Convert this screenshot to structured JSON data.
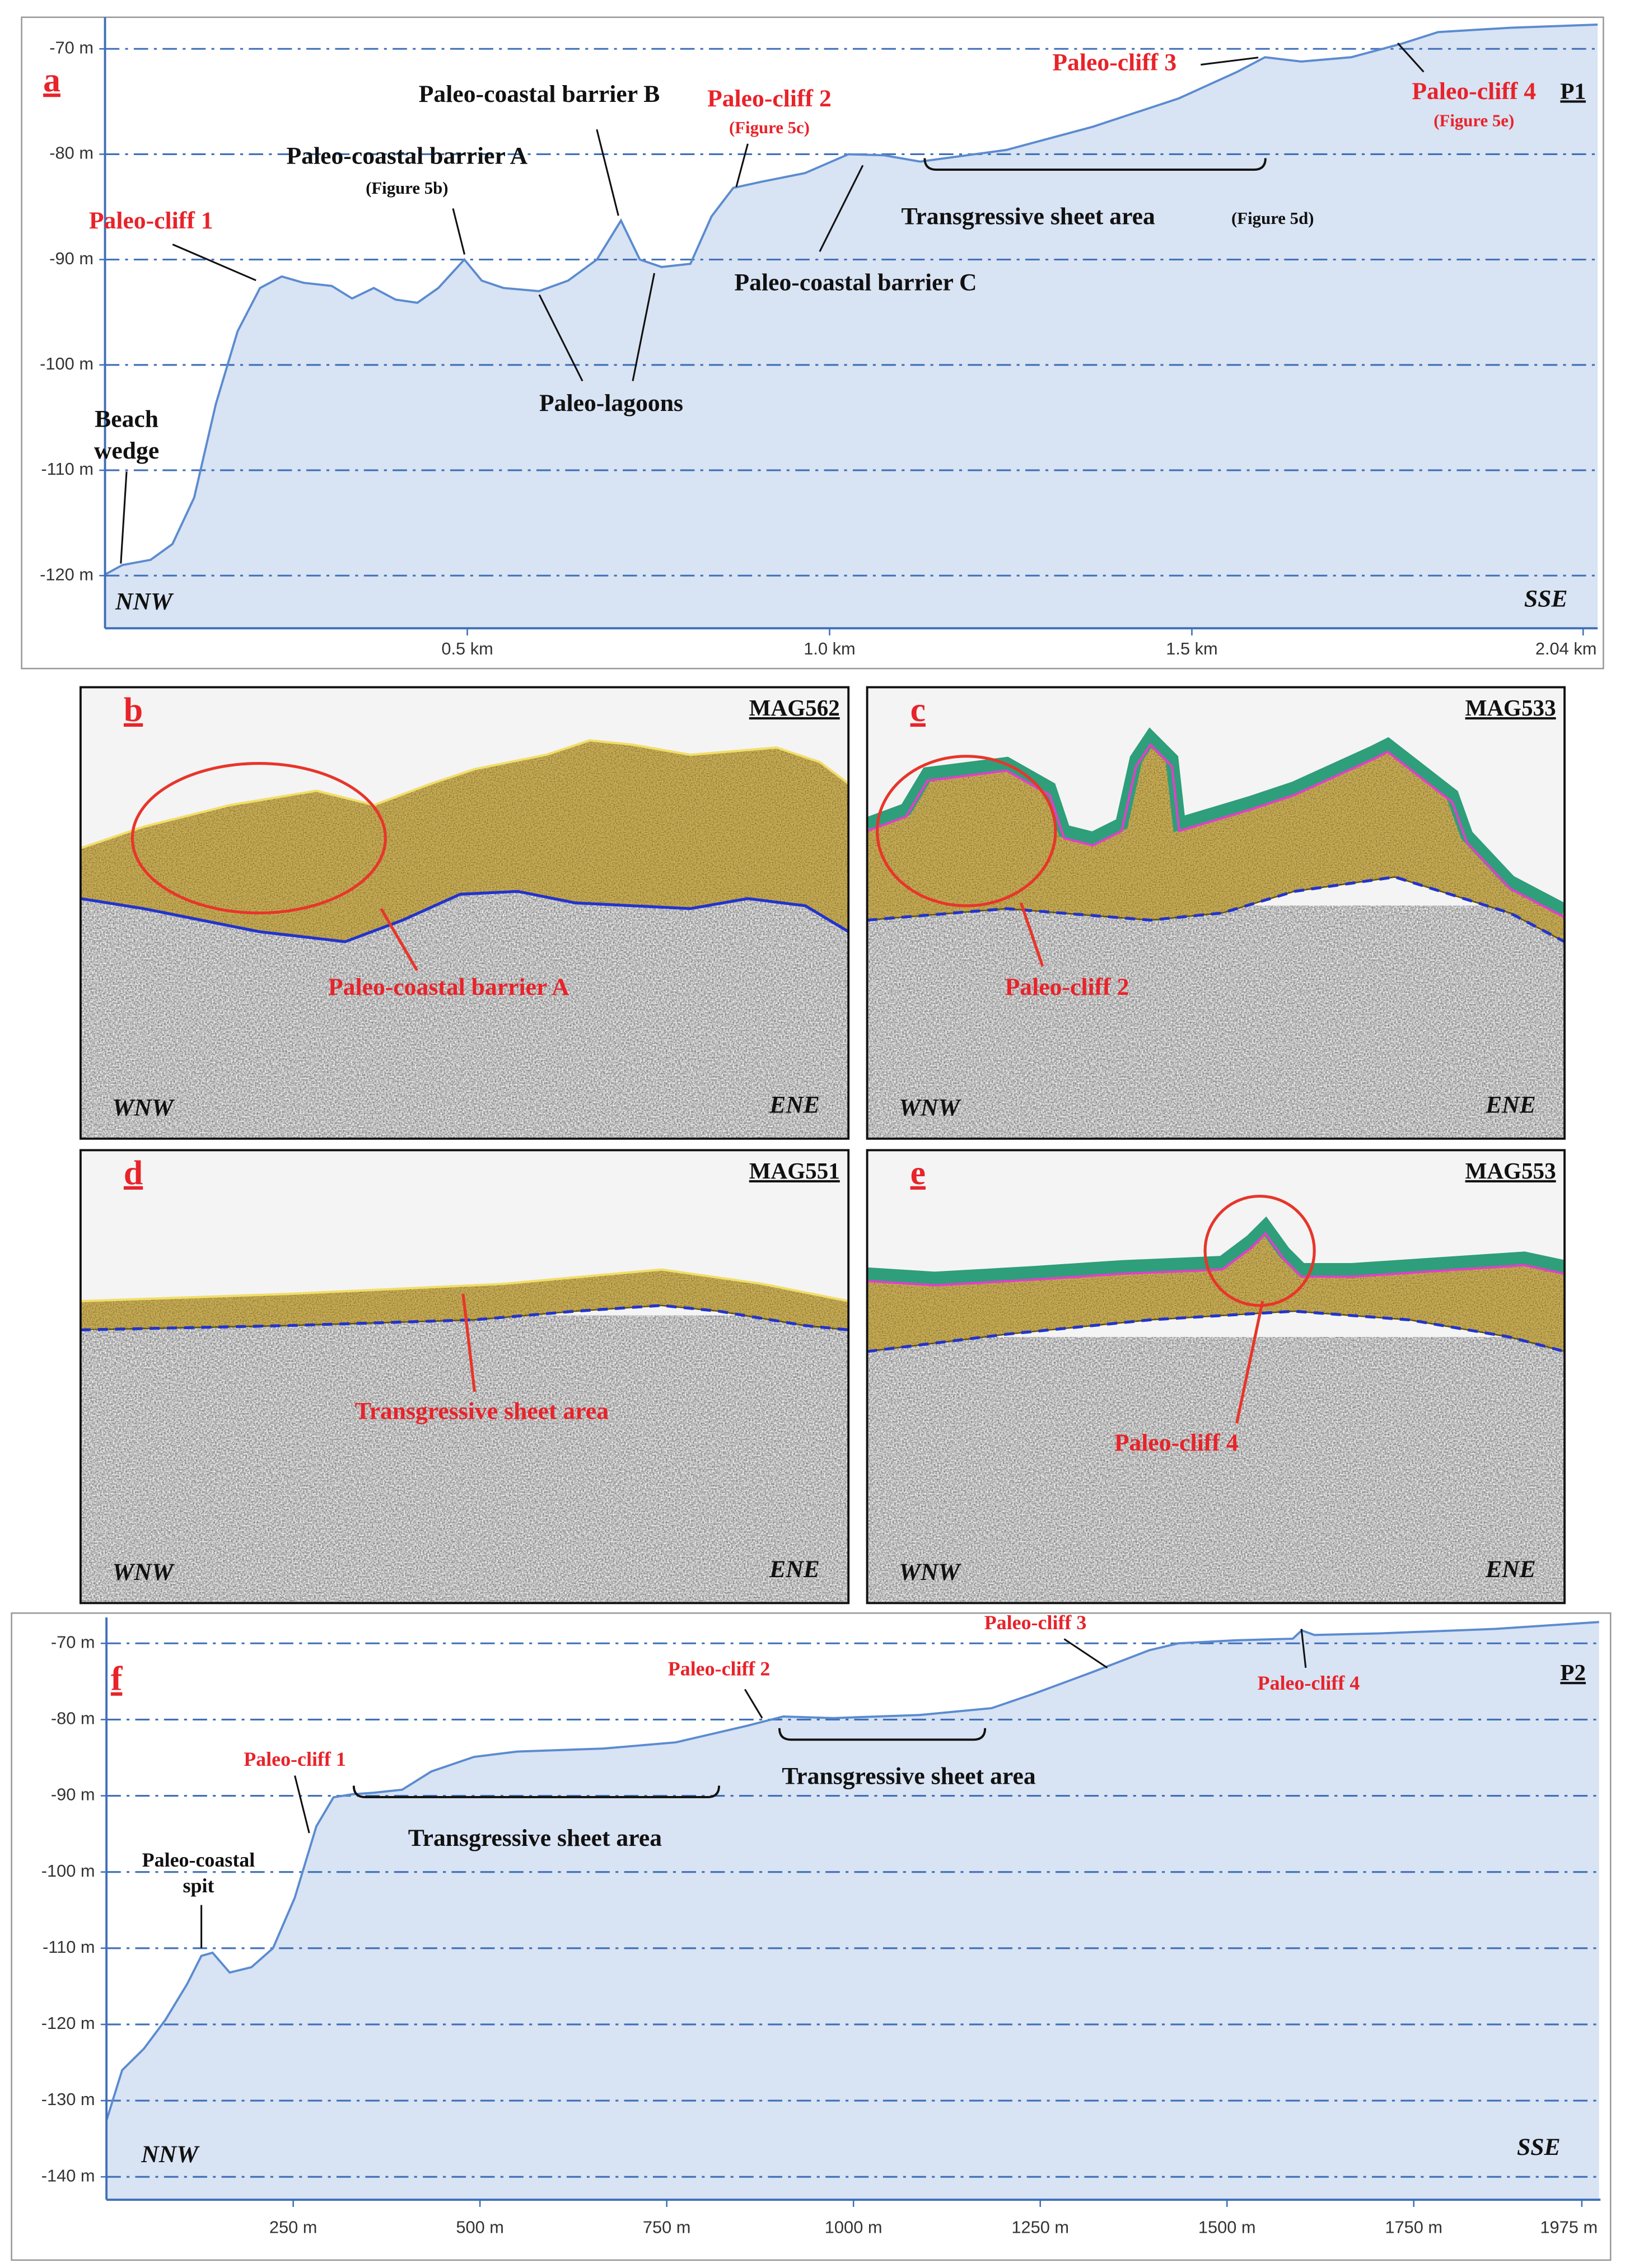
{
  "chart_data": [
    {
      "type": "area",
      "panel": "a",
      "profile": "P1",
      "left_direction": "NNW",
      "right_direction": "SSE",
      "color": "#5b8bd0",
      "fill": "#d8e3f3",
      "grid": true,
      "x": [
        0,
        0.024,
        0.063,
        0.093,
        0.123,
        0.153,
        0.183,
        0.214,
        0.244,
        0.274,
        0.313,
        0.341,
        0.371,
        0.401,
        0.431,
        0.46,
        0.496,
        0.52,
        0.55,
        0.599,
        0.639,
        0.679,
        0.712,
        0.738,
        0.768,
        0.808,
        0.837,
        0.867,
        0.907,
        0.966,
        1.026,
        1.075,
        1.125,
        1.244,
        1.363,
        1.482,
        1.562,
        1.601,
        1.651,
        1.72,
        1.79,
        1.84,
        1.94,
        2.06
      ],
      "values": [
        -119.9,
        -119,
        -118.5,
        -117,
        -112.6,
        -103.7,
        -96.8,
        -92.7,
        -91.6,
        -92.2,
        -92.5,
        -93.7,
        -92.7,
        -93.8,
        -94.1,
        -92.7,
        -90,
        -92,
        -92.7,
        -93,
        -92,
        -90,
        -86.3,
        -90,
        -90.7,
        -90.4,
        -85.9,
        -83.2,
        -82.6,
        -81.8,
        -80,
        -80.1,
        -80.7,
        -79.6,
        -77.4,
        -74.7,
        -72.2,
        -70.8,
        -71.2,
        -70.8,
        -69.5,
        -68.4,
        -68,
        -67.7
      ],
      "xlim": [
        0,
        2.06
      ],
      "ylim": [
        -125,
        -67
      ],
      "xticks": [
        {
          "value": 0.5,
          "label": "0.5 km"
        },
        {
          "value": 1.0,
          "label": "1.0 km"
        },
        {
          "value": 1.5,
          "label": "1.5 km"
        },
        {
          "value": 2.04,
          "label": "2.04 km"
        }
      ],
      "yticks": [
        {
          "value": -70,
          "label": "-70 m"
        },
        {
          "value": -80,
          "label": "-80 m"
        },
        {
          "value": -90,
          "label": "-90 m"
        },
        {
          "value": -100,
          "label": "-100 m"
        },
        {
          "value": -110,
          "label": "-110 m"
        },
        {
          "value": -120,
          "label": "-120 m"
        }
      ],
      "annotations": [
        {
          "text": "Paleo-cliff 1",
          "color": "#e8232a"
        },
        {
          "text": "Paleo-coastal barrier A",
          "color": "#111111"
        },
        {
          "text": "(Figure 5b)",
          "color": "#111111"
        },
        {
          "text": "Paleo-coastal barrier B",
          "color": "#111111"
        },
        {
          "text": "Paleo-cliff 2",
          "color": "#e8232a"
        },
        {
          "text": "(Figure 5c)",
          "color": "#e8232a"
        },
        {
          "text": "Paleo-cliff 3",
          "color": "#e8232a"
        },
        {
          "text": "Paleo-cliff 4",
          "color": "#e8232a"
        },
        {
          "text": "(Figure 5e)",
          "color": "#e8232a"
        },
        {
          "text": "Transgressive sheet area",
          "color": "#111111"
        },
        {
          "text": "(Figure 5d)",
          "color": "#111111"
        },
        {
          "text": "Paleo-coastal barrier C",
          "color": "#111111"
        },
        {
          "text": "Paleo-lagoons",
          "color": "#111111"
        },
        {
          "text": "Beach",
          "color": "#111111"
        },
        {
          "text": "wedge",
          "color": "#111111"
        }
      ]
    },
    {
      "type": "area",
      "panel": "f",
      "profile": "P2",
      "left_direction": "NNW",
      "right_direction": "SSE",
      "color": "#5b8bd0",
      "fill": "#d8e3f3",
      "grid": true,
      "x": [
        0,
        21,
        50,
        79,
        108,
        127,
        142,
        165,
        194,
        223,
        252,
        281,
        304,
        329,
        358,
        396,
        435,
        492,
        550,
        665,
        762,
        858,
        906,
        973,
        1088,
        1185,
        1242,
        1319,
        1396,
        1435,
        1512,
        1588,
        1600,
        1617,
        1704,
        1858,
        1998
      ],
      "values": [
        -132.6,
        -126,
        -123.2,
        -119.4,
        -114.7,
        -111,
        -110.6,
        -113.2,
        -112.5,
        -110,
        -103.4,
        -94,
        -90.2,
        -89.8,
        -89.6,
        -89.2,
        -86.8,
        -84.9,
        -84.2,
        -83.8,
        -83,
        -80.8,
        -79.6,
        -79.8,
        -79.4,
        -78.5,
        -76.6,
        -73.8,
        -70.9,
        -70,
        -69.6,
        -69.4,
        -68.3,
        -68.9,
        -68.7,
        -68.1,
        -67.2
      ],
      "xlim": [
        0,
        2000
      ],
      "ylim": [
        -143,
        -66.6
      ],
      "xticks": [
        {
          "value": 250,
          "label": "250 m"
        },
        {
          "value": 500,
          "label": "500 m"
        },
        {
          "value": 750,
          "label": "750 m"
        },
        {
          "value": 1000,
          "label": "1000 m"
        },
        {
          "value": 1250,
          "label": "1250 m"
        },
        {
          "value": 1500,
          "label": "1500 m"
        },
        {
          "value": 1750,
          "label": "1750 m"
        },
        {
          "value": 1975,
          "label": "1975 m"
        }
      ],
      "yticks": [
        {
          "value": -70,
          "label": "-70 m"
        },
        {
          "value": -80,
          "label": "-80 m"
        },
        {
          "value": -90,
          "label": "-90 m"
        },
        {
          "value": -100,
          "label": "-100 m"
        },
        {
          "value": -110,
          "label": "-110 m"
        },
        {
          "value": -120,
          "label": "-120 m"
        },
        {
          "value": -130,
          "label": "-130 m"
        },
        {
          "value": -140,
          "label": "-140 m"
        }
      ],
      "annotations": [
        {
          "text": "Paleo-cliff 1",
          "color": "#e8232a"
        },
        {
          "text": "Paleo-coastal",
          "color": "#111111"
        },
        {
          "text": "spit",
          "color": "#111111"
        },
        {
          "text": "Transgressive sheet area",
          "color": "#111111"
        },
        {
          "text": "Paleo-cliff 2",
          "color": "#e8232a"
        },
        {
          "text": "Transgressive sheet area",
          "color": "#111111"
        },
        {
          "text": "Paleo-cliff 3",
          "color": "#e8232a"
        },
        {
          "text": "Paleo-cliff 4",
          "color": "#e8232a"
        }
      ]
    }
  ],
  "panels": [
    {
      "letter": "b",
      "code": "MAG562",
      "left_direction": "WNW",
      "right_direction": "ENE",
      "label": "Paleo-coastal barrier A"
    },
    {
      "letter": "c",
      "code": "MAG533",
      "left_direction": "WNW",
      "right_direction": "ENE",
      "label": "Paleo-cliff 2"
    },
    {
      "letter": "d",
      "code": "MAG551",
      "left_direction": "WNW",
      "right_direction": "ENE",
      "label": "Transgressive sheet area"
    },
    {
      "letter": "e",
      "code": "MAG553",
      "left_direction": "WNW",
      "right_direction": "ENE",
      "label": "Paleo-cliff 4"
    }
  ]
}
